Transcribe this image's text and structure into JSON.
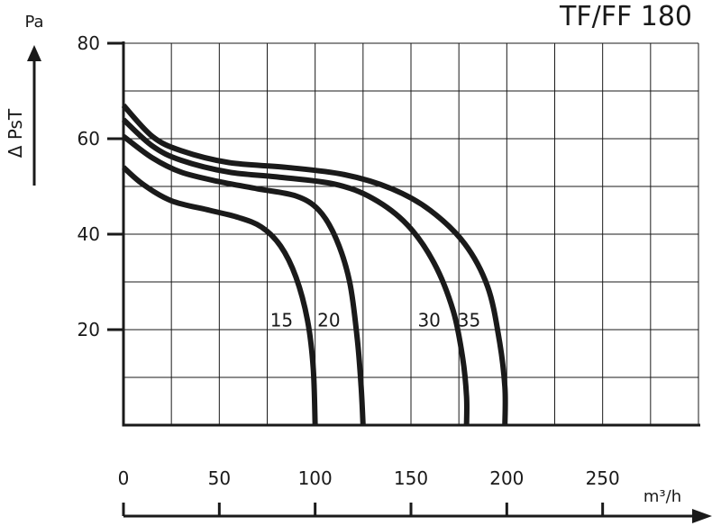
{
  "chart_data": {
    "type": "line",
    "title": "TF/FF 180",
    "ylabel": "Δ PsT",
    "y_unit": "Pa",
    "x_unit": "m³/h",
    "xlim": [
      0,
      300
    ],
    "ylim": [
      0,
      80
    ],
    "x_ticks": [
      0,
      50,
      100,
      150,
      200,
      250
    ],
    "y_ticks": [
      20,
      40,
      60,
      80
    ],
    "grid": true,
    "series": [
      {
        "name": "15",
        "points": [
          [
            0,
            54
          ],
          [
            10,
            50.5
          ],
          [
            25,
            47
          ],
          [
            45,
            45
          ],
          [
            60,
            43.5
          ],
          [
            72,
            41.5
          ],
          [
            82,
            37.5
          ],
          [
            90,
            31
          ],
          [
            96,
            22
          ],
          [
            99,
            12
          ],
          [
            100,
            0
          ]
        ]
      },
      {
        "name": "20",
        "points": [
          [
            0,
            60.5
          ],
          [
            15,
            56
          ],
          [
            30,
            53
          ],
          [
            50,
            51
          ],
          [
            70,
            49.5
          ],
          [
            90,
            48
          ],
          [
            102,
            45
          ],
          [
            111,
            39
          ],
          [
            118,
            30
          ],
          [
            122,
            18
          ],
          [
            124,
            8
          ],
          [
            125,
            0
          ]
        ]
      },
      {
        "name": "30",
        "points": [
          [
            0,
            64
          ],
          [
            15,
            58.5
          ],
          [
            30,
            55.5
          ],
          [
            55,
            53
          ],
          [
            80,
            52
          ],
          [
            110,
            50.5
          ],
          [
            130,
            47.5
          ],
          [
            148,
            42
          ],
          [
            162,
            34
          ],
          [
            172,
            24
          ],
          [
            177,
            14
          ],
          [
            179,
            6
          ],
          [
            179,
            0
          ]
        ]
      },
      {
        "name": "35",
        "points": [
          [
            0,
            67
          ],
          [
            15,
            60.5
          ],
          [
            30,
            57.5
          ],
          [
            55,
            55
          ],
          [
            85,
            54
          ],
          [
            115,
            52.5
          ],
          [
            140,
            49.5
          ],
          [
            160,
            45
          ],
          [
            178,
            38
          ],
          [
            190,
            29
          ],
          [
            196,
            18
          ],
          [
            199,
            8
          ],
          [
            199,
            0
          ]
        ]
      }
    ]
  }
}
